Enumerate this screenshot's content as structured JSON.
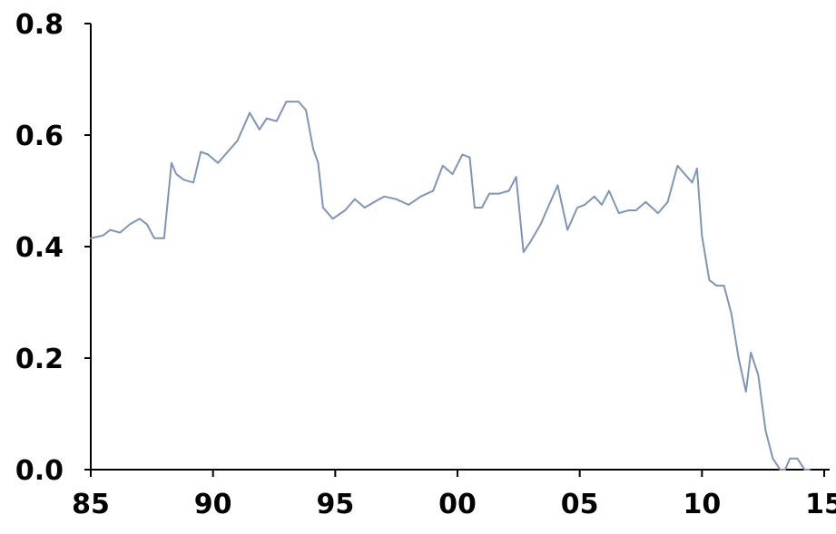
{
  "chart_data": {
    "type": "line",
    "title": "",
    "xlabel": "",
    "ylabel": "",
    "xlim": [
      1985,
      2015
    ],
    "ylim": [
      0,
      0.8
    ],
    "grid": false,
    "legend": "none",
    "x_ticks": [
      {
        "value": 1985,
        "label": "85"
      },
      {
        "value": 1990,
        "label": "90"
      },
      {
        "value": 1995,
        "label": "95"
      },
      {
        "value": 2000,
        "label": "00"
      },
      {
        "value": 2005,
        "label": "05"
      },
      {
        "value": 2010,
        "label": "10"
      },
      {
        "value": 2015,
        "label": "15"
      }
    ],
    "y_ticks": [
      {
        "value": 0.0,
        "label": "0.0"
      },
      {
        "value": 0.2,
        "label": "0.2"
      },
      {
        "value": 0.4,
        "label": "0.4"
      },
      {
        "value": 0.6,
        "label": "0.6"
      },
      {
        "value": 0.8,
        "label": "0.8"
      }
    ],
    "series": [
      {
        "color": "#7f95b8",
        "x": [
          1985.0,
          1985.5,
          1985.8,
          1986.2,
          1986.6,
          1987.0,
          1987.3,
          1987.6,
          1988.0,
          1988.3,
          1988.5,
          1988.8,
          1989.2,
          1989.5,
          1989.8,
          1990.2,
          1990.6,
          1991.0,
          1991.5,
          1991.9,
          1992.2,
          1992.6,
          1993.0,
          1993.5,
          1993.8,
          1994.1,
          1994.3,
          1994.5,
          1994.9,
          1995.4,
          1995.8,
          1996.2,
          1996.6,
          1997.0,
          1997.5,
          1998.0,
          1998.5,
          1999.0,
          1999.4,
          1999.8,
          2000.2,
          2000.5,
          2000.7,
          2001.0,
          2001.3,
          2001.7,
          2002.1,
          2002.4,
          2002.7,
          2003.0,
          2003.4,
          2003.8,
          2004.1,
          2004.5,
          2004.9,
          2005.2,
          2005.6,
          2005.9,
          2006.2,
          2006.6,
          2007.0,
          2007.3,
          2007.7,
          2008.2,
          2008.6,
          2009.0,
          2009.3,
          2009.6,
          2009.8,
          2010.0,
          2010.3,
          2010.6,
          2010.9,
          2011.2,
          2011.5,
          2011.8,
          2012.0,
          2012.3,
          2012.6,
          2012.9,
          2013.2,
          2013.4,
          2013.6,
          2013.9,
          2014.2,
          2014.4
        ],
        "y": [
          0.415,
          0.42,
          0.43,
          0.425,
          0.44,
          0.45,
          0.44,
          0.415,
          0.415,
          0.55,
          0.53,
          0.52,
          0.515,
          0.57,
          0.565,
          0.55,
          0.57,
          0.59,
          0.64,
          0.61,
          0.63,
          0.625,
          0.66,
          0.66,
          0.645,
          0.575,
          0.55,
          0.47,
          0.45,
          0.465,
          0.485,
          0.47,
          0.48,
          0.49,
          0.485,
          0.475,
          0.49,
          0.5,
          0.545,
          0.53,
          0.565,
          0.56,
          0.47,
          0.47,
          0.495,
          0.495,
          0.5,
          0.525,
          0.39,
          0.41,
          0.44,
          0.48,
          0.51,
          0.43,
          0.47,
          0.475,
          0.49,
          0.475,
          0.5,
          0.46,
          0.465,
          0.465,
          0.48,
          0.46,
          0.48,
          0.545,
          0.53,
          0.515,
          0.54,
          0.42,
          0.34,
          0.33,
          0.33,
          0.28,
          0.2,
          0.14,
          0.21,
          0.17,
          0.07,
          0.02,
          0.0,
          0.0,
          0.02,
          0.02,
          0.0,
          0.0
        ]
      }
    ]
  }
}
